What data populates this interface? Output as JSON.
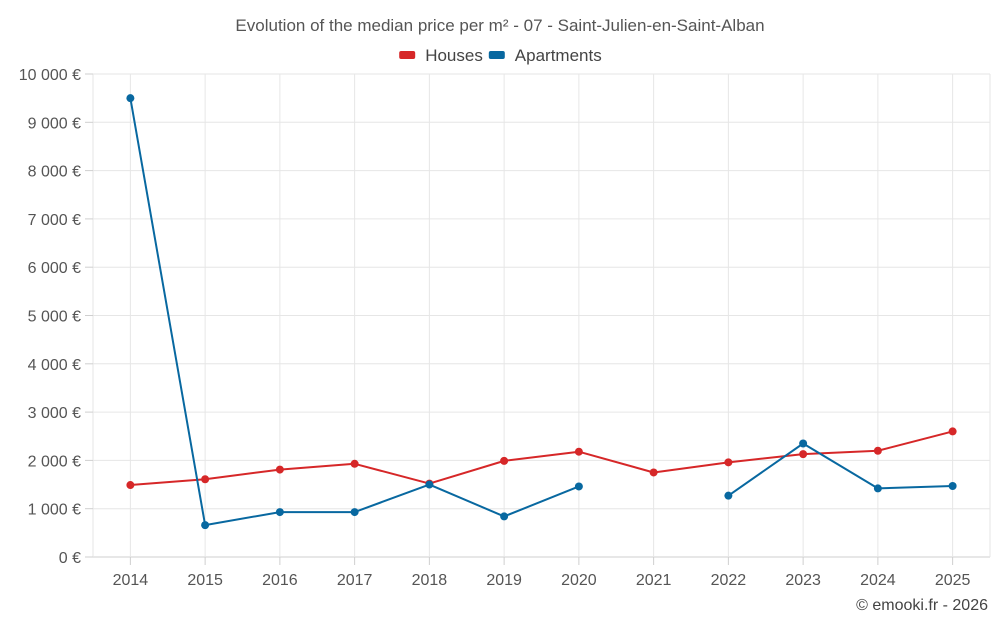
{
  "chart_data": {
    "type": "line",
    "title": "Evolution of the median price per m² - 07 - Saint-Julien-en-Saint-Alban",
    "categories": [
      "2014",
      "2015",
      "2016",
      "2017",
      "2018",
      "2019",
      "2020",
      "2021",
      "2022",
      "2023",
      "2024",
      "2025"
    ],
    "series": [
      {
        "name": "Houses",
        "color": "#d62728",
        "values": [
          1490,
          1610,
          1810,
          1930,
          1520,
          1990,
          2180,
          1750,
          1960,
          2130,
          2200,
          2600
        ]
      },
      {
        "name": "Apartments",
        "color": "#0868a0",
        "values": [
          9500,
          660,
          930,
          930,
          1500,
          840,
          1460,
          null,
          1270,
          2350,
          1420,
          1470
        ]
      }
    ],
    "ylim": [
      0,
      10000
    ],
    "yticks": [
      0,
      1000,
      2000,
      3000,
      4000,
      5000,
      6000,
      7000,
      8000,
      9000,
      10000
    ],
    "ytick_labels": [
      "0 €",
      "1 000 €",
      "2 000 €",
      "3 000 €",
      "4 000 €",
      "5 000 €",
      "6 000 €",
      "7 000 €",
      "8 000 €",
      "9 000 €",
      "10 000 €"
    ],
    "xlabel": "",
    "ylabel": "",
    "legend_position": "top-center",
    "grid": true
  },
  "credit": "© emooki.fr - 2026"
}
